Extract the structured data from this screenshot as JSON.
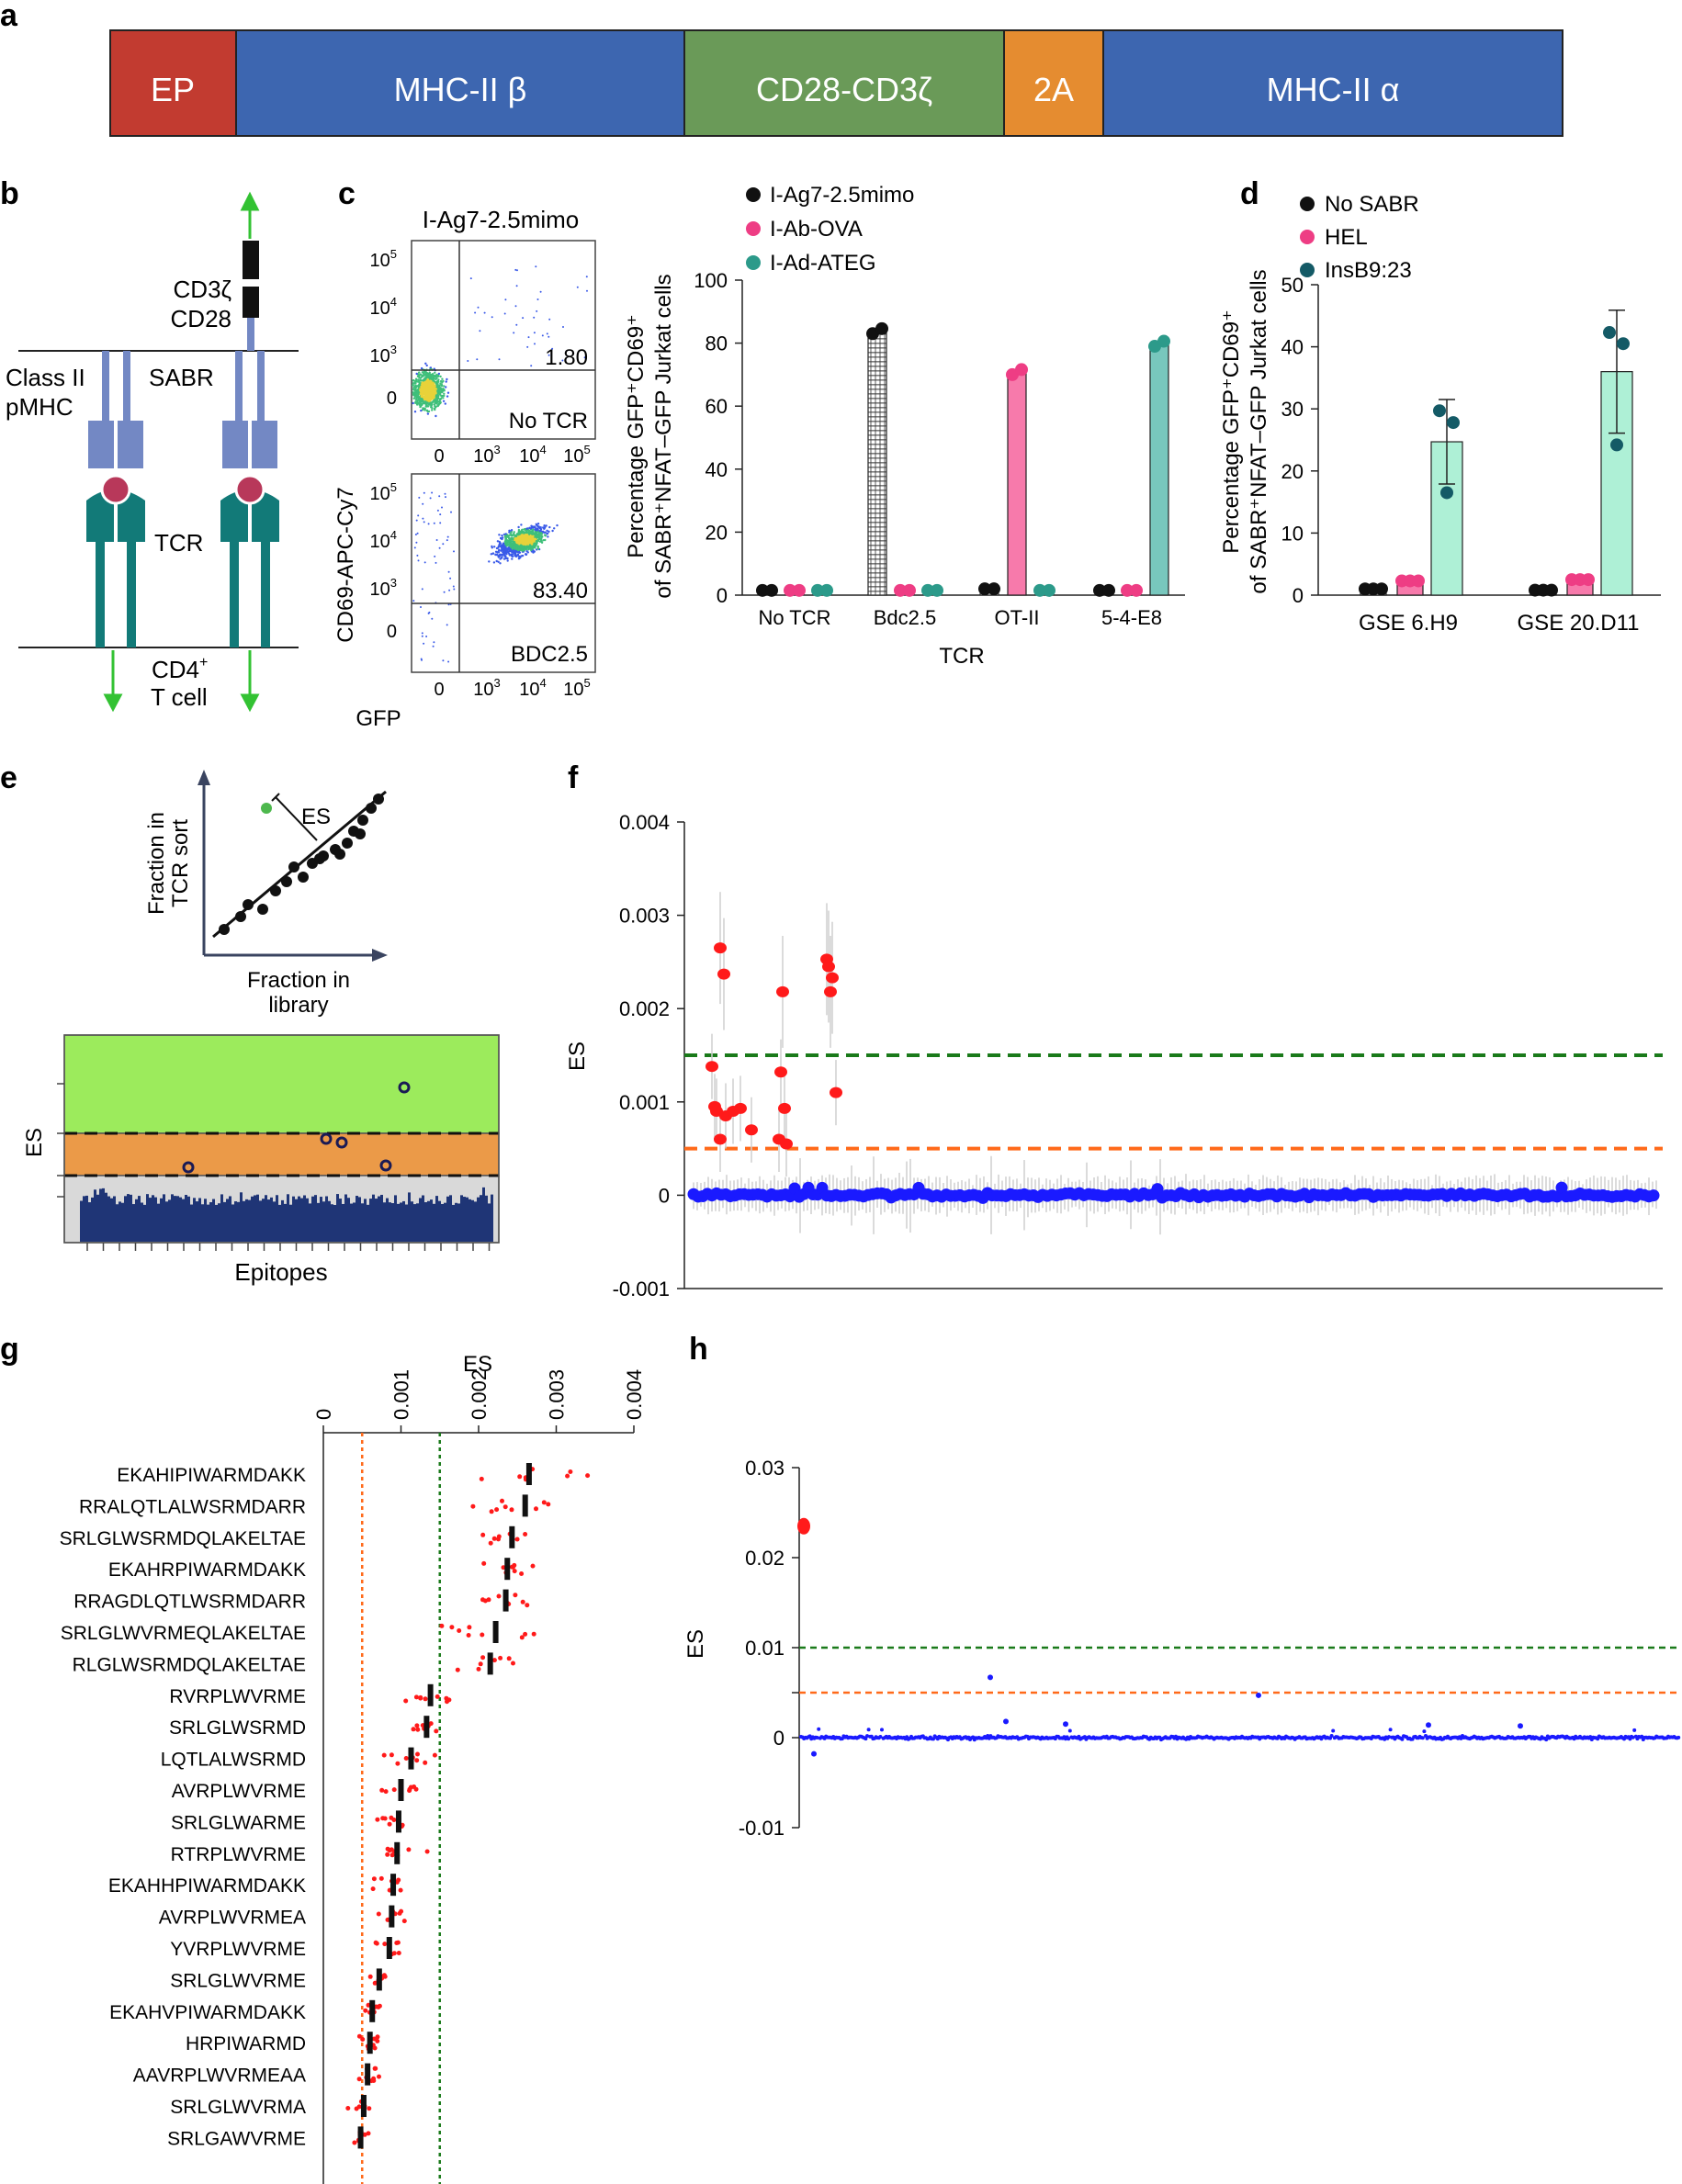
{
  "panel_letters": [
    "a",
    "b",
    "c",
    "d",
    "e",
    "f",
    "g",
    "h"
  ],
  "colors": {
    "ep": "#c23b30",
    "mhc": "#3d66b0",
    "cd28": "#6a9a58",
    "twoA": "#e58c30",
    "black": "#111111",
    "pink": "#ee3d84",
    "teal": "#2c9a8a",
    "darkteal": "#145a66",
    "red": "#ff1a1a",
    "blue": "#1a1aff",
    "green_line": "#1a7a1a",
    "orange_line": "#ff6a1a",
    "green_zone": "#9ceb5c",
    "orange_zone": "#eb9a48",
    "gray_zone": "#d9d9d9",
    "tcr": "#127a78",
    "mhc_schematic": "#7388c4",
    "peptide": "#b8385a",
    "arrow": "#33c233"
  },
  "panel_a": {
    "segments": [
      {
        "label": "EP",
        "color": "#c23b30"
      },
      {
        "label": "MHC-II β",
        "color": "#3d66b0"
      },
      {
        "label": "CD28-CD3ζ",
        "color": "#6a9a58"
      },
      {
        "label": "2A",
        "color": "#e58c30"
      },
      {
        "label": "MHC-II α",
        "color": "#3d66b0"
      }
    ]
  },
  "panel_b": {
    "cd3z": "CD3ζ",
    "cd28": "CD28",
    "class_ii": "Class II",
    "pmhc": "pMHC",
    "sabr": "SABR",
    "tcr": "TCR",
    "cd4": "CD4",
    "cd4_sup": "+",
    "tcell": "T cell"
  },
  "panel_c": {
    "flow_title": "I-Ag7-2.5mimo",
    "plot1": {
      "value": "1.80",
      "label": "No TCR"
    },
    "plot2": {
      "value": "83.40",
      "label": "BDC2.5"
    },
    "ylabel": "CD69-APC-Cy7",
    "xlabel": "GFP",
    "tick_exp": [
      "10",
      "10",
      "10"
    ],
    "exps": [
      "5",
      "4",
      "3"
    ],
    "xexps": [
      "3",
      "4",
      "5"
    ],
    "zero": "0",
    "bar_chart": {
      "legend": [
        "I-Ag7-2.5mimo",
        "I-Ab-OVA",
        "I-Ad-ATEG"
      ],
      "ylabel1": "Percentage GFP⁺CD69⁺",
      "ylabel2": "of SABR⁺NFAT–GFP Jurkat cells",
      "xlabel": "TCR"
    }
  },
  "panel_d": {
    "legend": [
      "No SABR",
      "HEL",
      "InsB9:23"
    ],
    "ylabel1": "Percentage GFP⁺CD69⁺",
    "ylabel2": "of SABR⁺NFAT–GFP Jurkat cells"
  },
  "panel_e": {
    "es": "ES",
    "ylabel1": "Fraction in",
    "ylabel2": "TCR sort",
    "xlabel1": "Fraction in",
    "xlabel2": "library",
    "bottom_ylabel": "ES",
    "bottom_xlabel": "Epitopes"
  },
  "panel_f": {
    "ylabel": "ES"
  },
  "panel_g": {
    "xlabel": "ES"
  },
  "panel_h": {
    "ylabel": "ES"
  },
  "chart_data": [
    {
      "id": "c",
      "type": "bar",
      "title": "",
      "categories": [
        "No TCR",
        "Bdc2.5",
        "OT-II",
        "5-4-E8"
      ],
      "series": [
        {
          "name": "I-Ag7-2.5mimo",
          "values": [
            1.5,
            84,
            2,
            1.5
          ]
        },
        {
          "name": "I-Ab-OVA",
          "values": [
            1.5,
            1.5,
            71,
            1.5
          ]
        },
        {
          "name": "I-Ad-ATEG",
          "values": [
            1.5,
            1.5,
            1.5,
            80
          ]
        }
      ],
      "ylim": [
        0,
        100
      ],
      "yticks": [
        "0",
        "20",
        "40",
        "60",
        "80",
        "100"
      ],
      "xlabel": "TCR",
      "ylabel": "Percentage GFP⁺CD69⁺ of SABR⁺NFAT–GFP Jurkat cells"
    },
    {
      "id": "d",
      "type": "bar",
      "title": "",
      "categories": [
        "GSE 6.H9",
        "GSE 20.D11"
      ],
      "series": [
        {
          "name": "No SABR",
          "values": [
            1,
            0.8
          ]
        },
        {
          "name": "HEL",
          "values": [
            2.3,
            2.5
          ]
        },
        {
          "name": "InsB9:23",
          "values": [
            24.7,
            36
          ]
        }
      ],
      "errors": [
        [
          0.3,
          0.5,
          6.8
        ],
        [
          0.2,
          0.5,
          9.9
        ]
      ],
      "ylim": [
        0,
        50
      ],
      "yticks": [
        "0",
        "10",
        "20",
        "30",
        "40",
        "50"
      ],
      "ylabel": "Percentage GFP⁺CD69⁺ of SABR⁺NFAT–GFP Jurkat cells"
    },
    {
      "id": "f",
      "type": "scatter",
      "ylabel": "ES",
      "ylim": [
        -0.001,
        0.004
      ],
      "yticks": [
        "-0.001",
        "0",
        "0.001",
        "0.002",
        "0.003",
        "0.004"
      ],
      "thresholds": {
        "green": 0.0015,
        "orange": 0.0005
      },
      "hits": [
        0.00138,
        0.00095,
        0.00265,
        0.00237,
        0.0009,
        0.0006,
        0.00085,
        0.0009,
        0.00093,
        0.0007,
        0.00218,
        0.00132,
        0.00093,
        0.0006,
        0.00055,
        0.00253,
        0.00245,
        0.00233,
        0.00218,
        0.0011
      ]
    },
    {
      "id": "g",
      "type": "scatter",
      "xlabel": "ES",
      "xlim": [
        0,
        0.004
      ],
      "xticks": [
        "0",
        "0.001",
        "0.002",
        "0.003",
        "0.004"
      ],
      "thresholds": {
        "green": 0.0015,
        "orange": 0.0005
      },
      "peptides": [
        "EKAHIPIWARMDAKK",
        "RRALQTLALWSRMDARR",
        "SRLGLWSRMDQLAKELTAE",
        "EKAHRPIWARMDAKK",
        "RRAGDLQTLWSRMDARR",
        "SRLGLWVRMEQLAKELTAE",
        "RLGLWSRMDQLAKELTAE",
        "RVRPLWVRME",
        "SRLGLWSRMD",
        "LQTLALWSRMD",
        "AVRPLWVRME",
        "SRLGLWARME",
        "RTRPLWVRME",
        "EKAHHPIWARMDAKK",
        "AVRPLWVRMEA",
        "YVRPLWVRME",
        "SRLGLWVRME",
        "EKAHVPIWARMDAKK",
        "HRPIWARMD",
        "AAVRPLWVRMEAA",
        "SRLGLWVRMA",
        "SRLGAWVRME"
      ],
      "medians": [
        0.00265,
        0.0026,
        0.00243,
        0.00237,
        0.00235,
        0.00222,
        0.00215,
        0.00138,
        0.00133,
        0.00113,
        0.001,
        0.00097,
        0.00095,
        0.0009,
        0.00088,
        0.00085,
        0.00072,
        0.00063,
        0.0006,
        0.00057,
        0.00052,
        0.00048
      ]
    },
    {
      "id": "h",
      "type": "scatter",
      "ylabel": "ES",
      "ylim": [
        -0.01,
        0.03
      ],
      "yticks": [
        "-0.01",
        "0",
        "0.01",
        "0.02",
        "0.03"
      ],
      "thresholds": {
        "green": 0.01,
        "orange": 0.005
      },
      "hits": [
        0.0235
      ]
    }
  ]
}
